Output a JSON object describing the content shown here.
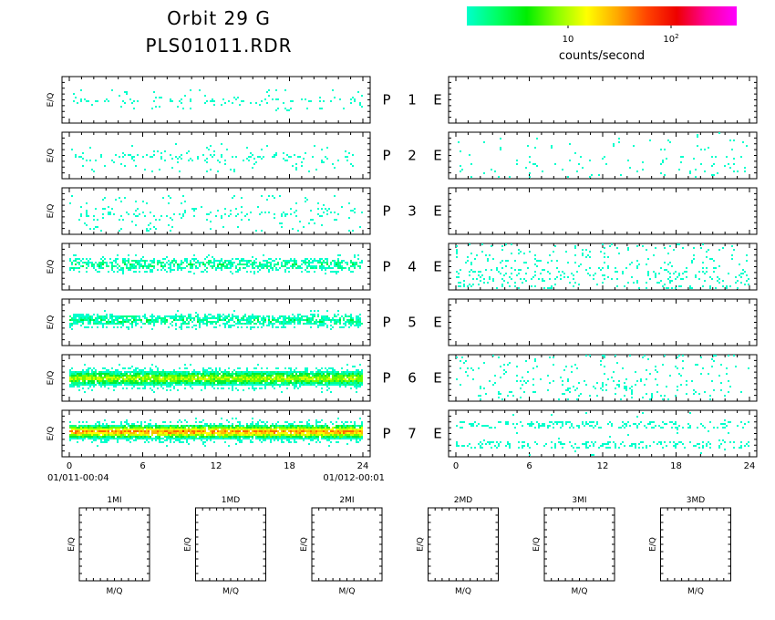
{
  "header": {
    "title": "Orbit 29 G",
    "filename": "PLS01011.RDR"
  },
  "colorbar": {
    "tick_10": "10",
    "tick_100_base": "10",
    "tick_100_exp": "2",
    "units": "counts/second",
    "colors": [
      "#00ffcc",
      "#00ff66",
      "#00ee00",
      "#88ff00",
      "#ffff00",
      "#ffaa00",
      "#ff4400",
      "#ee0000",
      "#ff0099",
      "#ff00ff"
    ]
  },
  "chart_data": {
    "type": "heatmap",
    "ylabel": "E/Q",
    "x_ticks": [
      "0",
      "6",
      "12",
      "18",
      "24"
    ],
    "xlim": [
      0,
      24
    ],
    "start_time": "01/011-00:04",
    "end_time": "01/012-00:01",
    "left_panels": [
      {
        "label": "P",
        "number": "1",
        "activity": "sparse",
        "center": 0.5,
        "spread": 0.12,
        "density": 0.18,
        "intensity": 0
      },
      {
        "label": "P",
        "number": "2",
        "activity": "sparse",
        "center": 0.52,
        "spread": 0.16,
        "density": 0.18,
        "intensity": 0
      },
      {
        "label": "P",
        "number": "3",
        "activity": "sparse",
        "center": 0.55,
        "spread": 0.2,
        "density": 0.2,
        "intensity": 0
      },
      {
        "label": "P",
        "number": "4",
        "activity": "band",
        "center": 0.45,
        "spread": 0.1,
        "density": 0.55,
        "intensity": 1
      },
      {
        "label": "P",
        "number": "5",
        "activity": "band",
        "center": 0.45,
        "spread": 0.1,
        "density": 0.7,
        "intensity": 1
      },
      {
        "label": "P",
        "number": "6",
        "activity": "strong",
        "center": 0.5,
        "spread": 0.15,
        "density": 0.95,
        "intensity": 4
      },
      {
        "label": "P",
        "number": "7",
        "activity": "very-strong",
        "center": 0.45,
        "spread": 0.15,
        "density": 0.95,
        "intensity": 7
      }
    ],
    "right_panels": [
      {
        "label": "E",
        "activity": "empty",
        "density": 0
      },
      {
        "label": "E",
        "activity": "very-sparse",
        "density": 0.03
      },
      {
        "label": "E",
        "activity": "empty",
        "density": 0
      },
      {
        "label": "E",
        "activity": "sparse",
        "density": 0.1
      },
      {
        "label": "E",
        "activity": "empty",
        "density": 0
      },
      {
        "label": "E",
        "activity": "sparse",
        "density": 0.06
      },
      {
        "label": "E",
        "activity": "band",
        "density": 0.25
      }
    ]
  },
  "small_panels": [
    {
      "title": "1MI",
      "ylabel": "E/Q",
      "xlabel": "M/Q"
    },
    {
      "title": "1MD",
      "ylabel": "E/Q",
      "xlabel": "M/Q"
    },
    {
      "title": "2MI",
      "ylabel": "E/Q",
      "xlabel": "M/Q"
    },
    {
      "title": "2MD",
      "ylabel": "E/Q",
      "xlabel": "M/Q"
    },
    {
      "title": "3MI",
      "ylabel": "E/Q",
      "xlabel": "M/Q"
    },
    {
      "title": "3MD",
      "ylabel": "E/Q",
      "xlabel": "M/Q"
    }
  ]
}
